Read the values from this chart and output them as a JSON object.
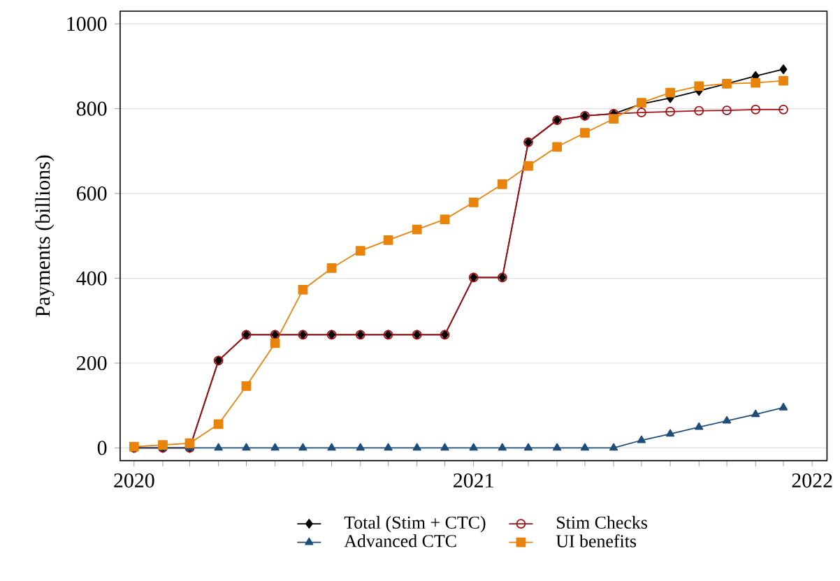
{
  "chart_data": {
    "type": "line",
    "ylabel": "Payments (billions)",
    "x": [
      "2020-01",
      "2020-02",
      "2020-03",
      "2020-04",
      "2020-05",
      "2020-06",
      "2020-07",
      "2020-08",
      "2020-09",
      "2020-10",
      "2020-11",
      "2020-12",
      "2021-01",
      "2021-02",
      "2021-03",
      "2021-04",
      "2021-05",
      "2021-06",
      "2021-07",
      "2021-08",
      "2021-09",
      "2021-10",
      "2021-11",
      "2021-12"
    ],
    "series": [
      {
        "name": "Total (Stim + CTC)",
        "color": "#000000",
        "marker": "diamond",
        "values": [
          0,
          0,
          0,
          206,
          267,
          267,
          267,
          267,
          267,
          267,
          267,
          267,
          402,
          402,
          721,
          773,
          783,
          788,
          811,
          825,
          842,
          859,
          877,
          893
        ]
      },
      {
        "name": "Stim Checks",
        "color": "#a50f15",
        "marker": "circle",
        "values": [
          0,
          0,
          0,
          206,
          267,
          267,
          267,
          267,
          267,
          267,
          267,
          267,
          402,
          402,
          721,
          773,
          783,
          788,
          791,
          793,
          795,
          796,
          798,
          798
        ]
      },
      {
        "name": "Advanced CTC",
        "color": "#1f4e79",
        "marker": "triangle",
        "values": [
          0,
          0,
          0,
          0,
          0,
          0,
          0,
          0,
          0,
          0,
          0,
          0,
          0,
          0,
          0,
          0,
          0,
          0,
          18,
          33,
          49,
          64,
          79,
          95
        ]
      },
      {
        "name": "UI benefits",
        "color": "#e8830c",
        "marker": "square",
        "values": [
          3,
          7,
          11,
          56,
          146,
          247,
          373,
          424,
          465,
          490,
          515,
          539,
          579,
          622,
          665,
          710,
          743,
          776,
          814,
          838,
          853,
          859,
          861,
          866
        ]
      }
    ],
    "xlim": [
      "2019-12-17",
      "2022-01-17"
    ],
    "xticks": [
      {
        "value": "2020-01",
        "label": "2020"
      },
      {
        "value": "2020-02",
        "label": null
      },
      {
        "value": "2020-03",
        "label": null
      },
      {
        "value": "2020-04",
        "label": null
      },
      {
        "value": "2020-05",
        "label": null
      },
      {
        "value": "2020-06",
        "label": null
      },
      {
        "value": "2020-07",
        "label": null
      },
      {
        "value": "2020-08",
        "label": null
      },
      {
        "value": "2020-09",
        "label": null
      },
      {
        "value": "2020-10",
        "label": null
      },
      {
        "value": "2020-11",
        "label": null
      },
      {
        "value": "2020-12",
        "label": null
      },
      {
        "value": "2021-01",
        "label": "2021"
      },
      {
        "value": "2021-02",
        "label": null
      },
      {
        "value": "2021-03",
        "label": null
      },
      {
        "value": "2021-04",
        "label": null
      },
      {
        "value": "2021-05",
        "label": null
      },
      {
        "value": "2021-06",
        "label": null
      },
      {
        "value": "2021-07",
        "label": null
      },
      {
        "value": "2021-08",
        "label": null
      },
      {
        "value": "2021-09",
        "label": null
      },
      {
        "value": "2021-10",
        "label": null
      },
      {
        "value": "2021-11",
        "label": null
      },
      {
        "value": "2021-12",
        "label": null
      },
      {
        "value": "2022-01",
        "label": "2022"
      }
    ],
    "ylim": [
      -30,
      1030
    ],
    "yticks": [
      0,
      200,
      400,
      600,
      800,
      1000
    ],
    "grid": "y",
    "legend": "bottom",
    "line_style": "solid"
  }
}
